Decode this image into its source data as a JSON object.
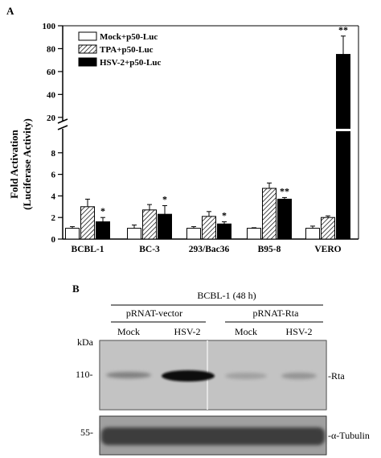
{
  "panel_a": {
    "panel_label": "A",
    "chart_data": {
      "type": "bar",
      "title": "",
      "xlabel": "",
      "ylabel": "Fold Activation (Luciferase Activity)",
      "ylabel_lines": [
        "Fold Activation",
        "(Luciferase Activity)"
      ],
      "y_axis": "broken",
      "ylim_lower": [
        0,
        10
      ],
      "ylim_upper": [
        10,
        100
      ],
      "y_ticks_lower": [
        0,
        2,
        4,
        6,
        8
      ],
      "y_ticks_upper": [
        20,
        40,
        60,
        80,
        100
      ],
      "grid": false,
      "legend_position": "top-left",
      "categories": [
        "BCBL-1",
        "BC-3",
        "293/Bac36",
        "B95-8",
        "VERO"
      ],
      "series": [
        {
          "name": "Mock+p50-Luc",
          "fill": "white",
          "values": [
            1.0,
            1.0,
            1.0,
            1.0,
            1.0
          ],
          "errors": [
            0.15,
            0.3,
            0.15,
            0.05,
            0.2
          ]
        },
        {
          "name": "TPA+p50-Luc",
          "fill": "hatched",
          "values": [
            3.0,
            2.7,
            2.1,
            4.7,
            2.0
          ],
          "errors": [
            0.7,
            0.5,
            0.45,
            0.5,
            0.15
          ]
        },
        {
          "name": "HSV-2+p50-Luc",
          "fill": "black",
          "values": [
            1.6,
            2.3,
            1.4,
            3.7,
            75.0
          ],
          "errors": [
            0.4,
            0.8,
            0.2,
            0.15,
            16.0
          ]
        }
      ],
      "significance": [
        {
          "category": "BCBL-1",
          "series": 2,
          "text": "*"
        },
        {
          "category": "BC-3",
          "series": 2,
          "text": "*"
        },
        {
          "category": "293/Bac36",
          "series": 2,
          "text": "*"
        },
        {
          "category": "B95-8",
          "series": 2,
          "text": "**"
        },
        {
          "category": "VERO",
          "series": 2,
          "text": "**"
        }
      ]
    }
  },
  "panel_b": {
    "panel_label": "B",
    "header": "BCBL-1 (48 h)",
    "groups": [
      "pRNAT-vector",
      "pRNAT-Rta"
    ],
    "lanes": [
      "Mock",
      "HSV-2",
      "Mock",
      "HSV-2"
    ],
    "kda_label": "kDa",
    "markers": [
      "110-",
      "55-"
    ],
    "rows": [
      "-Rta",
      "-α-Tubulin"
    ],
    "colors": {
      "blot_background": "#c6c6c6",
      "tubulin_background": "#9a9a9a",
      "band": "#141414"
    }
  }
}
